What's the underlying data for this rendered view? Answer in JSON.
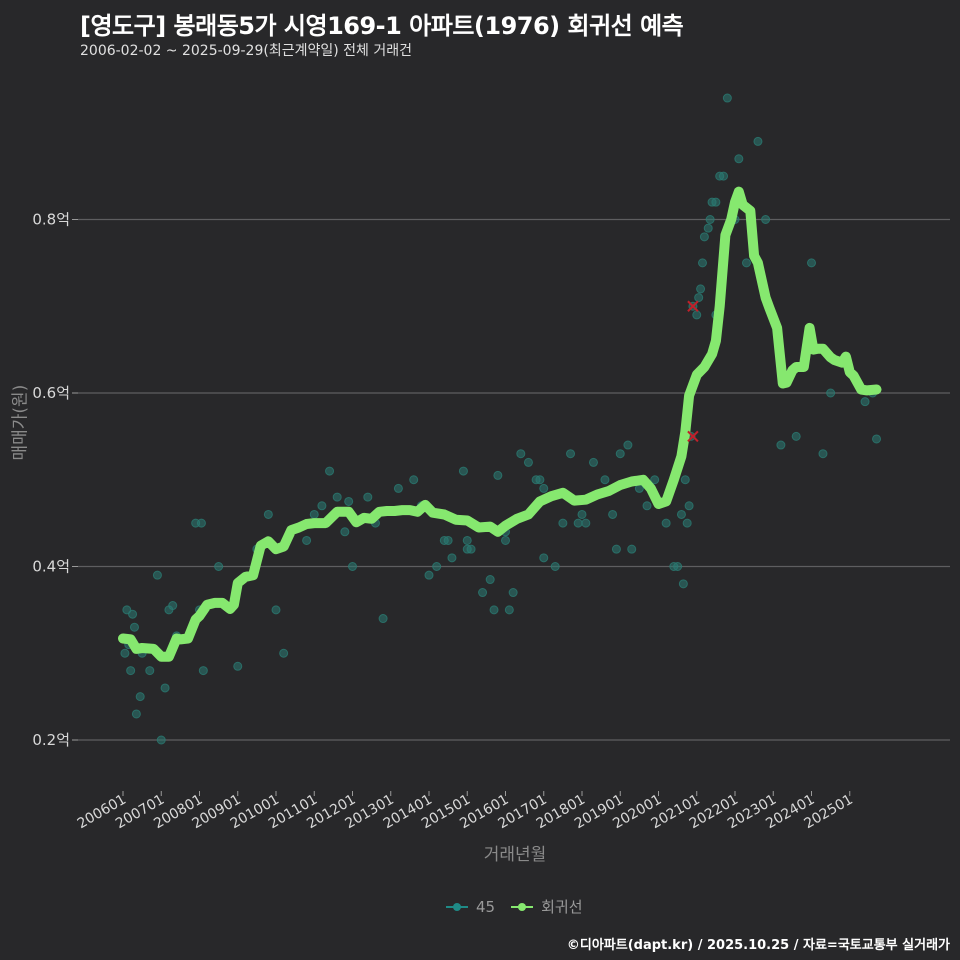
{
  "header": {
    "title": "[영도구] 봉래동5가 시영169-1 아파트(1976) 회귀선 예측",
    "subtitle": "2006-02-02 ~ 2025-09-29(최근계약일) 전체 거래건"
  },
  "axes": {
    "ylabel": "매매가(원)",
    "xlabel": "거래년월"
  },
  "legend": {
    "items": [
      {
        "label": "45",
        "color": "#1f8a86"
      },
      {
        "label": "회귀선",
        "color": "#86e86f"
      }
    ]
  },
  "footer": {
    "credit": "©디아파트(dapt.kr) / 2025.10.25 / 자료=국토교통부 실거래가"
  },
  "colors": {
    "background": "#28282a",
    "grid": "#5e5e60",
    "scatter": "#2a7a72",
    "regression": "#86e86f",
    "outlier_marker": "#c0202a"
  },
  "chart_data": {
    "type": "line",
    "title": "[영도구] 봉래동5가 시영169-1 아파트(1976) 회귀선 예측",
    "subtitle": "2006-02-02 ~ 2025-09-29(최근계약일) 전체 거래건",
    "xlabel": "거래년월",
    "ylabel": "매매가(원)",
    "x_ticks": [
      "200601",
      "200701",
      "200801",
      "200901",
      "201001",
      "201101",
      "201201",
      "201301",
      "201401",
      "201501",
      "201601",
      "201701",
      "201801",
      "201901",
      "202001",
      "202101",
      "202201",
      "202301",
      "202401",
      "202501"
    ],
    "y_ticks": [
      0.2,
      0.4,
      0.6,
      0.8
    ],
    "y_tick_labels": [
      "0.2억",
      "0.4억",
      "0.6억",
      "0.8억"
    ],
    "ylim": [
      0.15,
      0.95
    ],
    "grid": true,
    "legend_position": "bottom",
    "series": [
      {
        "name": "회귀선",
        "type": "line",
        "x": [
          2006.0,
          2006.2,
          2006.35,
          2006.5,
          2006.8,
          2007.0,
          2007.2,
          2007.4,
          2007.5,
          2007.7,
          2007.9,
          2008.0,
          2008.2,
          2008.4,
          2008.6,
          2008.8,
          2008.9,
          2009.0,
          2009.2,
          2009.4,
          2009.6,
          2009.8,
          2010.0,
          2010.2,
          2010.4,
          2010.6,
          2010.8,
          2011.0,
          2011.3,
          2011.6,
          2011.9,
          2012.1,
          2012.3,
          2012.5,
          2012.7,
          2012.9,
          2013.1,
          2013.3,
          2013.5,
          2013.7,
          2013.9,
          2014.1,
          2014.4,
          2014.7,
          2015.0,
          2015.3,
          2015.6,
          2015.8,
          2016.0,
          2016.3,
          2016.6,
          2016.9,
          2017.2,
          2017.5,
          2017.8,
          2018.1,
          2018.4,
          2018.7,
          2019.0,
          2019.3,
          2019.6,
          2019.8,
          2020.0,
          2020.2,
          2020.4,
          2020.6,
          2020.7,
          2020.8,
          2021.0,
          2021.2,
          2021.4,
          2021.5,
          2021.6,
          2021.75,
          2021.9,
          2022.0,
          2022.1,
          2022.2,
          2022.4,
          2022.5,
          2022.6,
          2022.8,
          2022.9,
          2023.1,
          2023.25,
          2023.35,
          2023.5,
          2023.6,
          2023.8,
          2023.95,
          2024.05,
          2024.15,
          2024.3,
          2024.5,
          2024.6,
          2024.8,
          2024.9,
          2025.0,
          2025.1,
          2025.3,
          2025.45,
          2025.7
        ],
        "values": [
          0.317,
          0.316,
          0.305,
          0.306,
          0.305,
          0.296,
          0.296,
          0.317,
          0.316,
          0.317,
          0.339,
          0.343,
          0.356,
          0.358,
          0.358,
          0.351,
          0.356,
          0.381,
          0.388,
          0.39,
          0.424,
          0.429,
          0.42,
          0.423,
          0.442,
          0.445,
          0.449,
          0.45,
          0.45,
          0.463,
          0.463,
          0.451,
          0.456,
          0.455,
          0.463,
          0.464,
          0.464,
          0.465,
          0.465,
          0.463,
          0.471,
          0.462,
          0.46,
          0.454,
          0.453,
          0.445,
          0.446,
          0.44,
          0.447,
          0.455,
          0.46,
          0.475,
          0.481,
          0.485,
          0.476,
          0.477,
          0.483,
          0.487,
          0.494,
          0.498,
          0.5,
          0.49,
          0.472,
          0.475,
          0.5,
          0.527,
          0.555,
          0.597,
          0.621,
          0.63,
          0.645,
          0.66,
          0.7,
          0.782,
          0.8,
          0.82,
          0.832,
          0.817,
          0.81,
          0.758,
          0.75,
          0.71,
          0.698,
          0.675,
          0.611,
          0.612,
          0.626,
          0.63,
          0.63,
          0.675,
          0.65,
          0.651,
          0.651,
          0.641,
          0.638,
          0.635,
          0.642,
          0.624,
          0.62,
          0.604,
          0.603,
          0.604
        ]
      },
      {
        "name": "45",
        "type": "scatter",
        "x": [
          2006.05,
          2006.1,
          2006.15,
          2006.2,
          2006.25,
          2006.3,
          2006.35,
          2006.45,
          2006.5,
          2006.7,
          2006.9,
          2007.0,
          2007.1,
          2007.2,
          2007.3,
          2007.4,
          2007.9,
          2008.0,
          2008.1,
          2008.5,
          2009.0,
          2009.8,
          2010.0,
          2010.2,
          2010.8,
          2011.0,
          2011.2,
          2011.4,
          2011.6,
          2011.8,
          2011.9,
          2012.0,
          2012.4,
          2012.8,
          2013.2,
          2013.6,
          2014.0,
          2014.2,
          2014.4,
          2014.6,
          2014.9,
          2015.0,
          2015.1,
          2015.4,
          2015.6,
          2015.7,
          2015.8,
          2016.0,
          2016.1,
          2016.2,
          2016.4,
          2016.6,
          2016.8,
          2016.9,
          2017.0,
          2017.3,
          2017.5,
          2017.7,
          2017.9,
          2018.0,
          2018.1,
          2018.3,
          2018.6,
          2018.9,
          2019.0,
          2019.2,
          2019.5,
          2019.7,
          2019.9,
          2020.2,
          2020.4,
          2020.5,
          2020.6,
          2020.65,
          2020.7,
          2020.75,
          2020.8,
          2020.85,
          2020.9,
          2021.0,
          2021.05,
          2021.1,
          2021.15,
          2021.2,
          2021.3,
          2021.35,
          2021.4,
          2021.5,
          2021.6,
          2021.7,
          2021.8,
          2022.0,
          2022.1,
          2022.3,
          2022.6,
          2022.8,
          2023.2,
          2023.6,
          2024.0,
          2024.3,
          2025.4,
          2025.6
        ],
        "values": [
          0.3,
          0.35,
          0.31,
          0.28,
          0.345,
          0.33,
          0.23,
          0.25,
          0.3,
          0.28,
          0.39,
          0.2,
          0.26,
          0.35,
          0.355,
          0.32,
          0.45,
          0.35,
          0.28,
          0.4,
          0.285,
          0.46,
          0.35,
          0.3,
          0.43,
          0.46,
          0.47,
          0.51,
          0.48,
          0.44,
          0.475,
          0.4,
          0.48,
          0.34,
          0.49,
          0.5,
          0.39,
          0.4,
          0.43,
          0.41,
          0.51,
          0.43,
          0.42,
          0.37,
          0.385,
          0.35,
          0.505,
          0.43,
          0.35,
          0.37,
          0.53,
          0.52,
          0.5,
          0.5,
          0.49,
          0.4,
          0.45,
          0.53,
          0.45,
          0.46,
          0.45,
          0.52,
          0.5,
          0.42,
          0.53,
          0.54,
          0.49,
          0.47,
          0.5,
          0.45,
          0.4,
          0.4,
          0.46,
          0.38,
          0.5,
          0.45,
          0.47,
          0.55,
          0.7,
          0.69,
          0.71,
          0.72,
          0.75,
          0.78,
          0.79,
          0.8,
          0.82,
          0.82,
          0.85,
          0.85,
          0.94,
          0.8,
          0.87,
          0.75,
          0.89,
          0.8,
          0.54,
          0.55,
          0.75,
          0.53,
          0.59,
          0.6
        ],
        "extra_x": [
          2008.05,
          2009.5,
          2012.6,
          2013.8,
          2014.5,
          2015.0,
          2016.0,
          2017.0,
          2018.8,
          2019.3,
          2021.5,
          2024.5,
          2025.7
        ],
        "extra_values": [
          0.45,
          0.42,
          0.45,
          0.47,
          0.43,
          0.42,
          0.44,
          0.41,
          0.46,
          0.42,
          0.69,
          0.6,
          0.547
        ]
      }
    ],
    "outliers": [
      {
        "x": 2020.9,
        "value": 0.7
      },
      {
        "x": 2020.9,
        "value": 0.55
      }
    ]
  }
}
